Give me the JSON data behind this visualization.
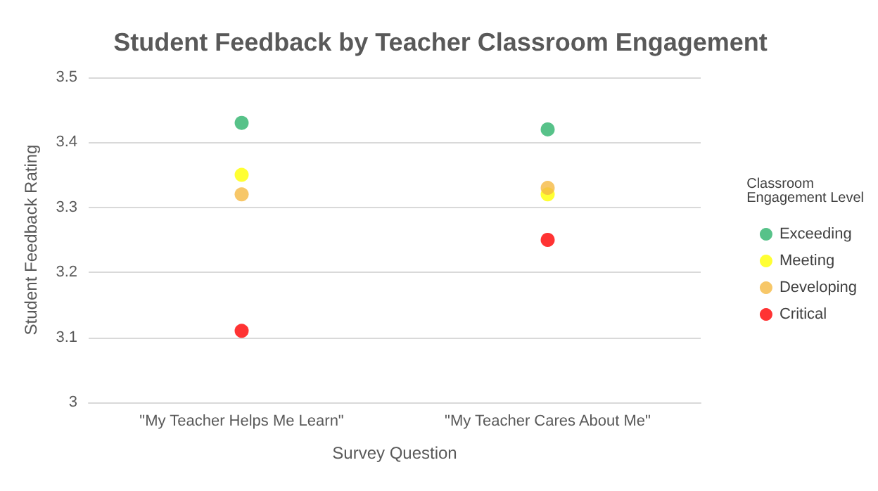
{
  "chart_data": {
    "type": "scatter",
    "title": "Student Feedback by Teacher Classroom Engagement",
    "xlabel": "Survey Question",
    "ylabel": "Student Feedback Rating",
    "legend_title": "Classroom Engagement Level",
    "categories": [
      "\"My Teacher Helps Me Learn\"",
      "\"My Teacher Cares About Me\""
    ],
    "series": [
      {
        "name": "Exceeding",
        "color": "#2db36b",
        "values": [
          3.43,
          3.42
        ]
      },
      {
        "name": "Meeting",
        "color": "#ffff00",
        "values": [
          3.35,
          3.32
        ]
      },
      {
        "name": "Developing",
        "color": "#f5b942",
        "values": [
          3.32,
          3.33
        ]
      },
      {
        "name": "Critical",
        "color": "#ff0000",
        "values": [
          3.11,
          3.25
        ]
      }
    ],
    "ylim": [
      3,
      3.5
    ],
    "yticks": [
      3,
      3.1,
      3.2,
      3.3,
      3.4,
      3.5
    ],
    "grid": "y",
    "legend": "right",
    "marker": "circle"
  }
}
